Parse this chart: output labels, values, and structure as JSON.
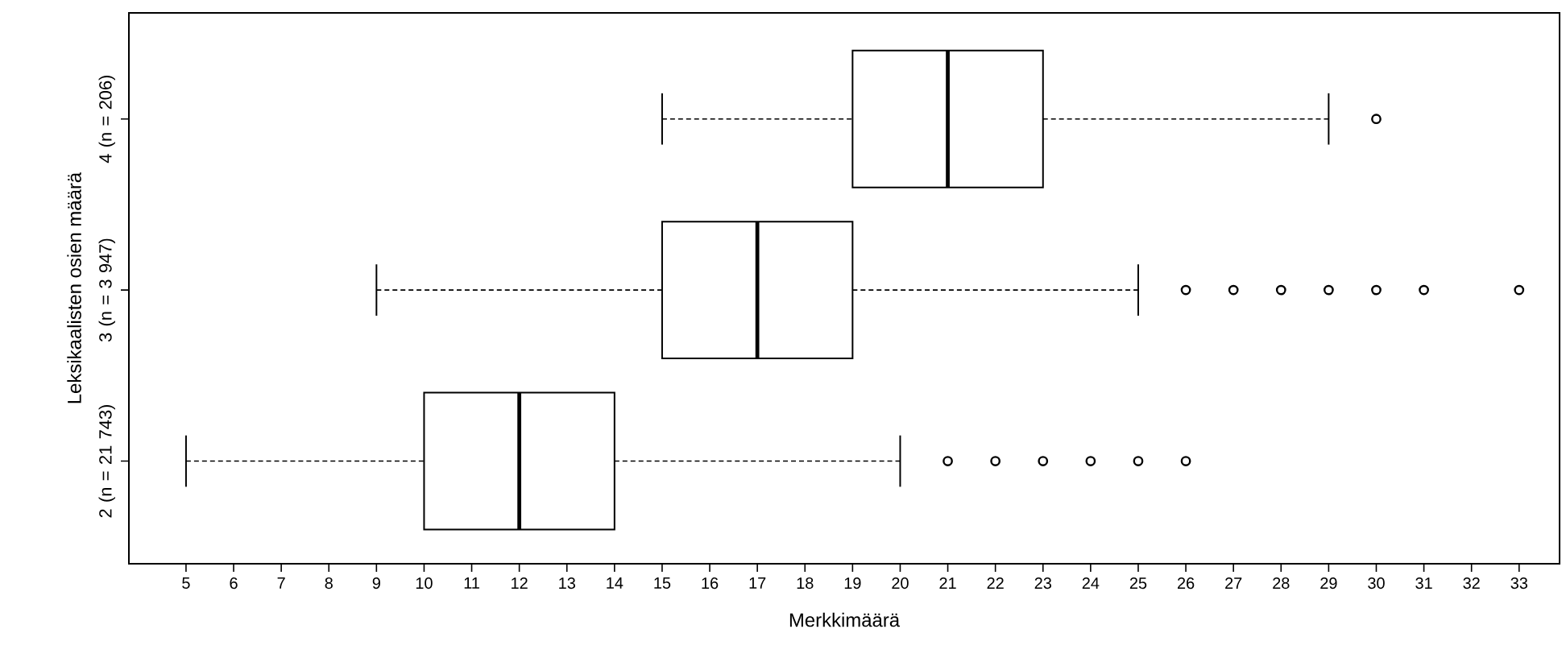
{
  "chart_data": {
    "type": "box",
    "orientation": "horizontal",
    "xlabel": "Merkkimäärä",
    "ylabel": "Leksikaalisten osien määrä",
    "categories": [
      "4 (n = 206)",
      "3 (n = 3 947)",
      "2 (n = 21 743)"
    ],
    "boxes": [
      {
        "low": 15,
        "q1": 19,
        "median": 21,
        "q3": 23,
        "high": 29,
        "outliers": [
          30
        ]
      },
      {
        "low": 9,
        "q1": 15,
        "median": 17,
        "q3": 19,
        "high": 25,
        "outliers": [
          26,
          27,
          28,
          29,
          30,
          31,
          33
        ]
      },
      {
        "low": 5,
        "q1": 10,
        "median": 12,
        "q3": 14,
        "high": 20,
        "outliers": [
          21,
          22,
          23,
          24,
          25,
          26
        ]
      }
    ],
    "xlim": [
      3.8,
      33.85
    ],
    "xticks": [
      5,
      6,
      7,
      8,
      9,
      10,
      11,
      12,
      13,
      14,
      15,
      16,
      17,
      18,
      19,
      20,
      21,
      22,
      23,
      24,
      25,
      26,
      27,
      28,
      29,
      30,
      31,
      32,
      33
    ],
    "grid": false,
    "marker": "circle"
  }
}
